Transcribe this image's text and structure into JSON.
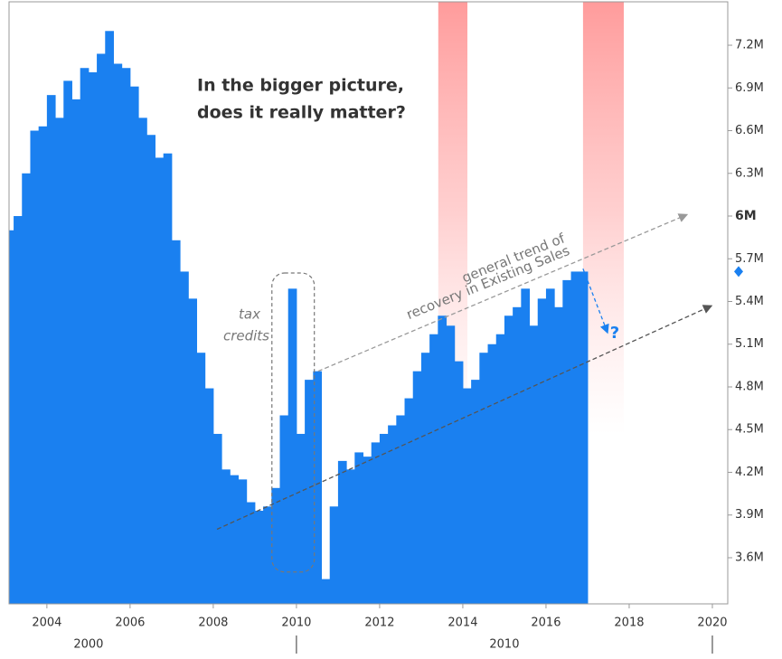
{
  "chart_data": {
    "type": "bar",
    "color": "#1a80f0",
    "x": [
      2003.1,
      2003.3,
      2003.5,
      2003.7,
      2003.9,
      2004.1,
      2004.3,
      2004.5,
      2004.7,
      2004.9,
      2005.1,
      2005.3,
      2005.5,
      2005.7,
      2005.9,
      2006.1,
      2006.3,
      2006.5,
      2006.7,
      2006.9,
      2007.1,
      2007.3,
      2007.5,
      2007.7,
      2007.9,
      2008.1,
      2008.3,
      2008.5,
      2008.7,
      2008.9,
      2009.1,
      2009.3,
      2009.5,
      2009.7,
      2009.9,
      2010.1,
      2010.3,
      2010.5,
      2010.7,
      2010.9,
      2011.1,
      2011.3,
      2011.5,
      2011.7,
      2011.9,
      2012.1,
      2012.3,
      2012.5,
      2012.7,
      2012.9,
      2013.1,
      2013.3,
      2013.5,
      2013.7,
      2013.9,
      2014.1,
      2014.3,
      2014.5,
      2014.7,
      2014.9,
      2015.1,
      2015.3,
      2015.5,
      2015.7,
      2015.9,
      2016.1,
      2016.3,
      2016.5,
      2016.7,
      2016.9
    ],
    "values": [
      5.9,
      6.0,
      6.3,
      6.6,
      6.63,
      6.85,
      6.69,
      6.95,
      6.82,
      7.04,
      7.01,
      7.14,
      7.3,
      7.07,
      7.04,
      6.91,
      6.69,
      6.57,
      6.41,
      6.44,
      5.83,
      5.61,
      5.42,
      5.04,
      4.79,
      4.47,
      4.22,
      4.18,
      4.15,
      3.99,
      3.93,
      3.96,
      4.09,
      4.6,
      5.49,
      4.47,
      4.85,
      4.91,
      3.45,
      3.96,
      4.28,
      4.22,
      4.34,
      4.31,
      4.41,
      4.47,
      4.53,
      4.6,
      4.72,
      4.91,
      5.04,
      5.17,
      5.3,
      5.23,
      4.98,
      4.79,
      4.85,
      5.04,
      5.1,
      5.17,
      5.3,
      5.36,
      5.49,
      5.23,
      5.42,
      5.49,
      5.36,
      5.55,
      5.61,
      5.61
    ],
    "xlim": [
      2003.09,
      2020.37
    ],
    "xticks": [
      2004,
      2006,
      2008,
      2010,
      2012,
      2014,
      2016,
      2018,
      2020
    ],
    "decades": [
      2000,
      2010
    ],
    "ylim": [
      3.276,
      7.505
    ],
    "yticks": [
      {
        "value": 3.6,
        "label": "3.6M"
      },
      {
        "value": 3.9,
        "label": "3.9M"
      },
      {
        "value": 4.2,
        "label": "4.2M"
      },
      {
        "value": 4.5,
        "label": "4.5M"
      },
      {
        "value": 4.8,
        "label": "4.8M"
      },
      {
        "value": 5.1,
        "label": "5.1M"
      },
      {
        "value": 5.4,
        "label": "5.4M"
      },
      {
        "value": 5.7,
        "label": "5.7M"
      },
      {
        "value": 6,
        "label": "6M"
      },
      {
        "value": 6.3,
        "label": "6.3M"
      },
      {
        "value": 6.6,
        "label": "6.6M"
      },
      {
        "value": 6.9,
        "label": "6.9M"
      },
      {
        "value": 7.2,
        "label": "7.2M"
      }
    ],
    "highlighted_ytick": 6,
    "grid": false,
    "shaded_regions": [
      [
        2013.41,
        2014.11
      ],
      [
        2016.89,
        2017.87
      ]
    ],
    "highlight_box": {
      "xlim": [
        2009.41,
        2010.43
      ],
      "ylim": [
        3.5,
        5.6
      ]
    },
    "trend_lines": [
      {
        "color": "#555555",
        "x": [
          2008.09,
          2019.98
        ],
        "y": [
          3.8,
          5.37
        ]
      },
      {
        "color": "#999999",
        "x": [
          2010.52,
          2019.39
        ],
        "y": [
          4.91,
          6.01
        ]
      }
    ],
    "projection": {
      "color": "#1a80f0",
      "x": [
        2016.89,
        2017.48
      ],
      "y": [
        5.63,
        5.18
      ]
    },
    "annotations": {
      "headline": [
        "In the bigger picture,",
        "does it really matter?"
      ],
      "tax_credits": [
        "tax",
        "credits"
      ],
      "trend": [
        "general trend of",
        "recovery in Existing Sales"
      ],
      "question": "?"
    }
  }
}
